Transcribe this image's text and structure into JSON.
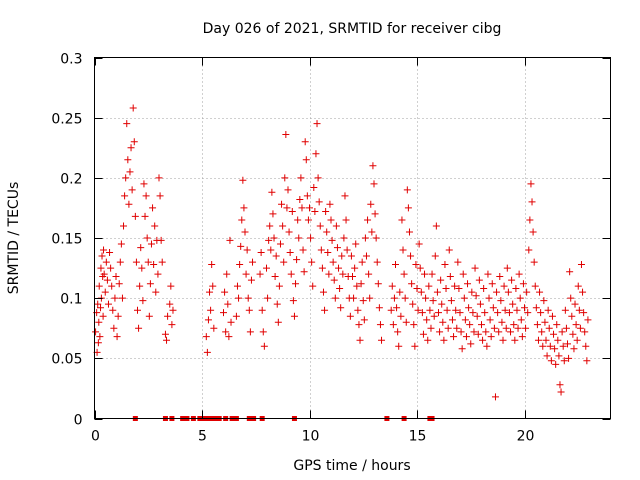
{
  "colors": {
    "series": "#e00000",
    "axis": "#000000",
    "grid": "#a0a0a0",
    "background": "#ffffff"
  },
  "chart_data": {
    "type": "scatter",
    "title": "Day 026 of 2021, SRMTID for receiver cibg",
    "xlabel": "GPS time / hours",
    "ylabel": "SRMTID / TECUs",
    "xlim": [
      0,
      24
    ],
    "ylim": [
      0,
      0.3
    ],
    "xticks": [
      0,
      5,
      10,
      15,
      20
    ],
    "xtick_labels": [
      "0",
      "5",
      "10",
      "15",
      "20"
    ],
    "yticks": [
      0,
      0.05,
      0.1,
      0.15,
      0.2,
      0.25,
      0.3
    ],
    "ytick_labels": [
      "0",
      "0.05",
      "0.1",
      "0.15",
      "0.2",
      "0.25",
      "0.3"
    ],
    "grid": true,
    "marker": "plus",
    "series_name": "SRMTID",
    "zero_value_times": [
      1.9,
      3.3,
      3.6,
      4.1,
      4.3,
      4.6,
      4.9,
      5.0,
      5.1,
      5.3,
      5.5,
      5.7,
      5.8,
      6.1,
      6.4,
      6.6,
      7.2,
      7.4,
      7.8,
      9.3,
      13.6,
      14.4,
      15.6,
      15.7
    ],
    "points": [
      [
        0.05,
        0.072
      ],
      [
        0.1,
        0.088
      ],
      [
        0.12,
        0.055
      ],
      [
        0.15,
        0.095
      ],
      [
        0.18,
        0.063
      ],
      [
        0.2,
        0.08
      ],
      [
        0.22,
        0.11
      ],
      [
        0.25,
        0.068
      ],
      [
        0.28,
        0.092
      ],
      [
        0.3,
        0.125
      ],
      [
        0.32,
        0.1
      ],
      [
        0.35,
        0.135
      ],
      [
        0.38,
        0.118
      ],
      [
        0.4,
        0.085
      ],
      [
        0.42,
        0.14
      ],
      [
        0.45,
        0.12
      ],
      [
        0.5,
        0.105
      ],
      [
        0.55,
        0.13
      ],
      [
        0.6,
        0.115
      ],
      [
        0.65,
        0.095
      ],
      [
        0.7,
        0.138
      ],
      [
        0.75,
        0.125
      ],
      [
        0.8,
        0.11
      ],
      [
        0.85,
        0.09
      ],
      [
        0.9,
        0.075
      ],
      [
        0.95,
        0.1
      ],
      [
        1.0,
        0.118
      ],
      [
        1.05,
        0.068
      ],
      [
        1.1,
        0.085
      ],
      [
        1.15,
        0.112
      ],
      [
        1.2,
        0.13
      ],
      [
        1.25,
        0.145
      ],
      [
        1.3,
        0.1
      ],
      [
        1.35,
        0.16
      ],
      [
        1.4,
        0.185
      ],
      [
        1.45,
        0.2
      ],
      [
        1.5,
        0.245
      ],
      [
        1.55,
        0.215
      ],
      [
        1.6,
        0.178
      ],
      [
        1.65,
        0.205
      ],
      [
        1.7,
        0.225
      ],
      [
        1.75,
        0.19
      ],
      [
        1.8,
        0.258
      ],
      [
        1.85,
        0.23
      ],
      [
        1.9,
        0.168
      ],
      [
        1.95,
        0.13
      ],
      [
        2.0,
        0.09
      ],
      [
        2.05,
        0.075
      ],
      [
        2.1,
        0.11
      ],
      [
        2.15,
        0.142
      ],
      [
        2.2,
        0.125
      ],
      [
        2.25,
        0.098
      ],
      [
        2.3,
        0.195
      ],
      [
        2.35,
        0.168
      ],
      [
        2.4,
        0.185
      ],
      [
        2.45,
        0.15
      ],
      [
        2.5,
        0.13
      ],
      [
        2.55,
        0.085
      ],
      [
        2.6,
        0.112
      ],
      [
        2.65,
        0.145
      ],
      [
        2.7,
        0.175
      ],
      [
        2.75,
        0.128
      ],
      [
        2.8,
        0.16
      ],
      [
        2.85,
        0.105
      ],
      [
        2.9,
        0.148
      ],
      [
        2.95,
        0.12
      ],
      [
        3.0,
        0.2
      ],
      [
        3.05,
        0.185
      ],
      [
        3.1,
        0.148
      ],
      [
        3.15,
        0.13
      ],
      [
        3.3,
        0.07
      ],
      [
        3.35,
        0.065
      ],
      [
        3.4,
        0.085
      ],
      [
        3.5,
        0.095
      ],
      [
        3.55,
        0.11
      ],
      [
        3.6,
        0.078
      ],
      [
        3.65,
        0.09
      ],
      [
        5.2,
        0.068
      ],
      [
        5.25,
        0.055
      ],
      [
        5.3,
        0.082
      ],
      [
        5.35,
        0.105
      ],
      [
        5.4,
        0.09
      ],
      [
        5.45,
        0.128
      ],
      [
        5.5,
        0.11
      ],
      [
        5.55,
        0.075
      ],
      [
        6.0,
        0.088
      ],
      [
        6.05,
        0.105
      ],
      [
        6.1,
        0.072
      ],
      [
        6.15,
        0.12
      ],
      [
        6.2,
        0.095
      ],
      [
        6.25,
        0.068
      ],
      [
        6.3,
        0.148
      ],
      [
        6.35,
        0.08
      ],
      [
        6.6,
        0.085
      ],
      [
        6.65,
        0.11
      ],
      [
        6.7,
        0.1
      ],
      [
        6.75,
        0.128
      ],
      [
        6.8,
        0.143
      ],
      [
        6.85,
        0.165
      ],
      [
        6.9,
        0.198
      ],
      [
        6.95,
        0.175
      ],
      [
        7.0,
        0.155
      ],
      [
        7.05,
        0.12
      ],
      [
        7.1,
        0.14
      ],
      [
        7.15,
        0.1
      ],
      [
        7.2,
        0.09
      ],
      [
        7.25,
        0.072
      ],
      [
        7.3,
        0.115
      ],
      [
        7.35,
        0.13
      ],
      [
        7.7,
        0.12
      ],
      [
        7.75,
        0.138
      ],
      [
        7.8,
        0.09
      ],
      [
        7.85,
        0.072
      ],
      [
        7.9,
        0.06
      ],
      [
        8.0,
        0.125
      ],
      [
        8.05,
        0.1
      ],
      [
        8.1,
        0.148
      ],
      [
        8.15,
        0.16
      ],
      [
        8.2,
        0.14
      ],
      [
        8.25,
        0.188
      ],
      [
        8.3,
        0.17
      ],
      [
        8.35,
        0.15
      ],
      [
        8.4,
        0.118
      ],
      [
        8.45,
        0.135
      ],
      [
        8.5,
        0.095
      ],
      [
        8.55,
        0.08
      ],
      [
        8.6,
        0.11
      ],
      [
        8.65,
        0.145
      ],
      [
        8.7,
        0.178
      ],
      [
        8.75,
        0.16
      ],
      [
        8.8,
        0.13
      ],
      [
        8.85,
        0.2
      ],
      [
        8.9,
        0.236
      ],
      [
        8.95,
        0.175
      ],
      [
        9.0,
        0.19
      ],
      [
        9.05,
        0.155
      ],
      [
        9.1,
        0.138
      ],
      [
        9.15,
        0.12
      ],
      [
        9.2,
        0.172
      ],
      [
        9.25,
        0.098
      ],
      [
        9.3,
        0.085
      ],
      [
        9.35,
        0.112
      ],
      [
        9.4,
        0.132
      ],
      [
        9.45,
        0.165
      ],
      [
        9.5,
        0.15
      ],
      [
        9.55,
        0.182
      ],
      [
        9.6,
        0.2
      ],
      [
        9.65,
        0.175
      ],
      [
        9.7,
        0.14
      ],
      [
        9.75,
        0.122
      ],
      [
        9.8,
        0.23
      ],
      [
        9.85,
        0.215
      ],
      [
        9.9,
        0.185
      ],
      [
        9.95,
        0.165
      ],
      [
        10.0,
        0.175
      ],
      [
        10.05,
        0.15
      ],
      [
        10.1,
        0.13
      ],
      [
        10.15,
        0.11
      ],
      [
        10.2,
        0.192
      ],
      [
        10.25,
        0.172
      ],
      [
        10.3,
        0.22
      ],
      [
        10.35,
        0.245
      ],
      [
        10.4,
        0.2
      ],
      [
        10.45,
        0.18
      ],
      [
        10.5,
        0.16
      ],
      [
        10.55,
        0.14
      ],
      [
        10.6,
        0.125
      ],
      [
        10.65,
        0.105
      ],
      [
        10.7,
        0.09
      ],
      [
        10.75,
        0.172
      ],
      [
        10.8,
        0.155
      ],
      [
        10.85,
        0.138
      ],
      [
        10.9,
        0.12
      ],
      [
        10.95,
        0.178
      ],
      [
        11.0,
        0.165
      ],
      [
        11.05,
        0.148
      ],
      [
        11.1,
        0.13
      ],
      [
        11.15,
        0.115
      ],
      [
        11.2,
        0.1
      ],
      [
        11.25,
        0.16
      ],
      [
        11.3,
        0.142
      ],
      [
        11.35,
        0.125
      ],
      [
        11.4,
        0.108
      ],
      [
        11.45,
        0.092
      ],
      [
        11.5,
        0.135
      ],
      [
        11.55,
        0.12
      ],
      [
        11.6,
        0.15
      ],
      [
        11.65,
        0.185
      ],
      [
        11.7,
        0.165
      ],
      [
        11.75,
        0.14
      ],
      [
        11.8,
        0.118
      ],
      [
        11.85,
        0.1
      ],
      [
        11.9,
        0.085
      ],
      [
        11.95,
        0.135
      ],
      [
        12.0,
        0.118
      ],
      [
        12.05,
        0.1
      ],
      [
        12.1,
        0.125
      ],
      [
        12.15,
        0.145
      ],
      [
        12.2,
        0.11
      ],
      [
        12.25,
        0.09
      ],
      [
        12.3,
        0.078
      ],
      [
        12.35,
        0.065
      ],
      [
        12.4,
        0.112
      ],
      [
        12.45,
        0.13
      ],
      [
        12.5,
        0.098
      ],
      [
        12.55,
        0.082
      ],
      [
        12.6,
        0.15
      ],
      [
        12.65,
        0.135
      ],
      [
        12.7,
        0.165
      ],
      [
        12.75,
        0.12
      ],
      [
        12.8,
        0.1
      ],
      [
        12.85,
        0.178
      ],
      [
        12.9,
        0.155
      ],
      [
        12.95,
        0.21
      ],
      [
        13.0,
        0.195
      ],
      [
        13.05,
        0.17
      ],
      [
        13.1,
        0.15
      ],
      [
        13.15,
        0.13
      ],
      [
        13.2,
        0.112
      ],
      [
        13.25,
        0.092
      ],
      [
        13.3,
        0.078
      ],
      [
        13.35,
        0.065
      ],
      [
        13.8,
        0.09
      ],
      [
        13.85,
        0.11
      ],
      [
        13.9,
        0.078
      ],
      [
        13.95,
        0.1
      ],
      [
        14.0,
        0.128
      ],
      [
        14.05,
        0.092
      ],
      [
        14.1,
        0.072
      ],
      [
        14.15,
        0.06
      ],
      [
        14.2,
        0.105
      ],
      [
        14.25,
        0.085
      ],
      [
        14.3,
        0.165
      ],
      [
        14.35,
        0.14
      ],
      [
        14.4,
        0.12
      ],
      [
        14.45,
        0.1
      ],
      [
        14.5,
        0.08
      ],
      [
        14.55,
        0.19
      ],
      [
        14.6,
        0.175
      ],
      [
        14.65,
        0.155
      ],
      [
        14.7,
        0.135
      ],
      [
        14.75,
        0.112
      ],
      [
        14.8,
        0.095
      ],
      [
        14.85,
        0.078
      ],
      [
        14.9,
        0.06
      ],
      [
        14.95,
        0.128
      ],
      [
        15.0,
        0.108
      ],
      [
        15.05,
        0.09
      ],
      [
        15.1,
        0.145
      ],
      [
        15.15,
        0.125
      ],
      [
        15.2,
        0.105
      ],
      [
        15.25,
        0.088
      ],
      [
        15.3,
        0.07
      ],
      [
        15.35,
        0.12
      ],
      [
        15.4,
        0.1
      ],
      [
        15.45,
        0.082
      ],
      [
        15.5,
        0.065
      ],
      [
        15.55,
        0.11
      ],
      [
        15.6,
        0.09
      ],
      [
        15.65,
        0.075
      ],
      [
        15.7,
        0.12
      ],
      [
        15.75,
        0.098
      ],
      [
        15.8,
        0.085
      ],
      [
        15.85,
        0.135
      ],
      [
        15.9,
        0.16
      ],
      [
        15.95,
        0.105
      ],
      [
        16.0,
        0.088
      ],
      [
        16.05,
        0.072
      ],
      [
        16.1,
        0.115
      ],
      [
        16.15,
        0.095
      ],
      [
        16.2,
        0.08
      ],
      [
        16.25,
        0.065
      ],
      [
        16.3,
        0.128
      ],
      [
        16.35,
        0.108
      ],
      [
        16.4,
        0.09
      ],
      [
        16.45,
        0.075
      ],
      [
        16.5,
        0.14
      ],
      [
        16.55,
        0.118
      ],
      [
        16.6,
        0.098
      ],
      [
        16.65,
        0.082
      ],
      [
        16.7,
        0.068
      ],
      [
        16.75,
        0.11
      ],
      [
        16.8,
        0.09
      ],
      [
        16.85,
        0.075
      ],
      [
        16.9,
        0.13
      ],
      [
        16.95,
        0.108
      ],
      [
        17.0,
        0.088
      ],
      [
        17.05,
        0.072
      ],
      [
        17.1,
        0.058
      ],
      [
        17.15,
        0.12
      ],
      [
        17.2,
        0.1
      ],
      [
        17.25,
        0.082
      ],
      [
        17.3,
        0.068
      ],
      [
        17.35,
        0.112
      ],
      [
        17.4,
        0.092
      ],
      [
        17.45,
        0.078
      ],
      [
        17.5,
        0.062
      ],
      [
        17.55,
        0.105
      ],
      [
        17.6,
        0.088
      ],
      [
        17.65,
        0.072
      ],
      [
        17.7,
        0.125
      ],
      [
        17.75,
        0.102
      ],
      [
        17.8,
        0.085
      ],
      [
        17.85,
        0.07
      ],
      [
        17.9,
        0.115
      ],
      [
        17.95,
        0.095
      ],
      [
        18.0,
        0.078
      ],
      [
        18.05,
        0.065
      ],
      [
        18.1,
        0.108
      ],
      [
        18.15,
        0.088
      ],
      [
        18.2,
        0.072
      ],
      [
        18.25,
        0.06
      ],
      [
        18.3,
        0.12
      ],
      [
        18.35,
        0.1
      ],
      [
        18.4,
        0.082
      ],
      [
        18.45,
        0.068
      ],
      [
        18.5,
        0.112
      ],
      [
        18.55,
        0.092
      ],
      [
        18.6,
        0.075
      ],
      [
        18.65,
        0.018
      ],
      [
        18.7,
        0.105
      ],
      [
        18.75,
        0.088
      ],
      [
        18.8,
        0.072
      ],
      [
        18.85,
        0.118
      ],
      [
        18.9,
        0.098
      ],
      [
        18.95,
        0.08
      ],
      [
        19.0,
        0.065
      ],
      [
        19.05,
        0.11
      ],
      [
        19.1,
        0.09
      ],
      [
        19.15,
        0.075
      ],
      [
        19.2,
        0.125
      ],
      [
        19.25,
        0.105
      ],
      [
        19.3,
        0.088
      ],
      [
        19.35,
        0.072
      ],
      [
        19.4,
        0.115
      ],
      [
        19.45,
        0.095
      ],
      [
        19.5,
        0.078
      ],
      [
        19.55,
        0.065
      ],
      [
        19.6,
        0.108
      ],
      [
        19.65,
        0.09
      ],
      [
        19.7,
        0.075
      ],
      [
        19.75,
        0.12
      ],
      [
        19.8,
        0.1
      ],
      [
        19.85,
        0.082
      ],
      [
        19.9,
        0.068
      ],
      [
        19.95,
        0.112
      ],
      [
        20.0,
        0.092
      ],
      [
        20.05,
        0.075
      ],
      [
        20.1,
        0.105
      ],
      [
        20.15,
        0.088
      ],
      [
        20.2,
        0.14
      ],
      [
        20.25,
        0.165
      ],
      [
        20.3,
        0.195
      ],
      [
        20.35,
        0.18
      ],
      [
        20.4,
        0.155
      ],
      [
        20.45,
        0.13
      ],
      [
        20.5,
        0.11
      ],
      [
        20.55,
        0.092
      ],
      [
        20.6,
        0.078
      ],
      [
        20.65,
        0.065
      ],
      [
        20.7,
        0.105
      ],
      [
        20.75,
        0.088
      ],
      [
        20.8,
        0.072
      ],
      [
        20.85,
        0.06
      ],
      [
        20.9,
        0.098
      ],
      [
        20.95,
        0.08
      ],
      [
        21.0,
        0.065
      ],
      [
        21.05,
        0.052
      ],
      [
        21.1,
        0.09
      ],
      [
        21.15,
        0.075
      ],
      [
        21.2,
        0.06
      ],
      [
        21.25,
        0.048
      ],
      [
        21.3,
        0.085
      ],
      [
        21.35,
        0.07
      ],
      [
        21.4,
        0.058
      ],
      [
        21.45,
        0.045
      ],
      [
        21.5,
        0.078
      ],
      [
        21.55,
        0.065
      ],
      [
        21.6,
        0.052
      ],
      [
        21.65,
        0.028
      ],
      [
        21.7,
        0.022
      ],
      [
        21.75,
        0.072
      ],
      [
        21.8,
        0.06
      ],
      [
        21.85,
        0.048
      ],
      [
        21.9,
        0.09
      ],
      [
        21.95,
        0.075
      ],
      [
        22.0,
        0.062
      ],
      [
        22.05,
        0.05
      ],
      [
        22.1,
        0.122
      ],
      [
        22.15,
        0.1
      ],
      [
        22.2,
        0.085
      ],
      [
        22.25,
        0.07
      ],
      [
        22.3,
        0.058
      ],
      [
        22.35,
        0.095
      ],
      [
        22.4,
        0.078
      ],
      [
        22.45,
        0.065
      ],
      [
        22.5,
        0.11
      ],
      [
        22.55,
        0.09
      ],
      [
        22.6,
        0.075
      ],
      [
        22.65,
        0.128
      ],
      [
        22.7,
        0.105
      ],
      [
        22.75,
        0.088
      ],
      [
        22.8,
        0.072
      ],
      [
        22.85,
        0.06
      ],
      [
        22.9,
        0.048
      ],
      [
        22.95,
        0.082
      ]
    ]
  }
}
